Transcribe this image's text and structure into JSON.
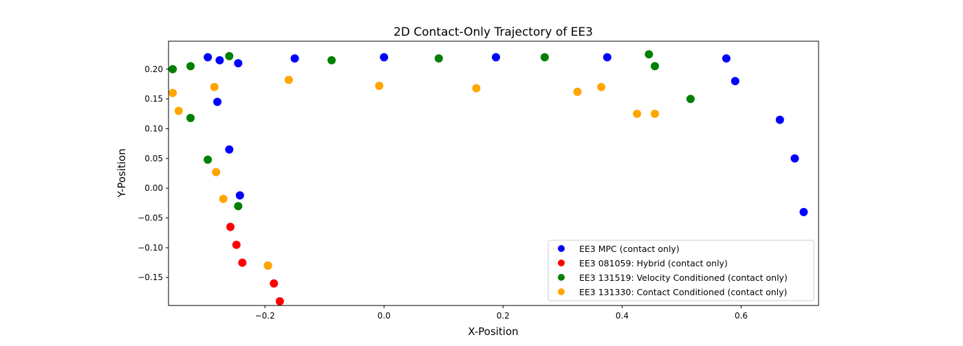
{
  "chart_data": {
    "type": "scatter",
    "title": "2D Contact-Only Trajectory of EE3",
    "xlabel": "X-Position",
    "ylabel": "Y-Position",
    "xlim": [
      -0.362,
      0.73
    ],
    "ylim": [
      -0.197,
      0.247
    ],
    "xticks": [
      -0.2,
      0.0,
      0.2,
      0.4,
      0.6
    ],
    "xtick_labels": [
      "−0.2",
      "0.0",
      "0.2",
      "0.4",
      "0.6"
    ],
    "yticks": [
      -0.15,
      -0.1,
      -0.05,
      0.0,
      0.05,
      0.1,
      0.15,
      0.2
    ],
    "ytick_labels": [
      "−0.15",
      "−0.10",
      "−0.05",
      "0.00",
      "0.05",
      "0.10",
      "0.15",
      "0.20"
    ],
    "grid": false,
    "legend_position": "bottom-right",
    "series": [
      {
        "name": "EE3 MPC (contact only)",
        "color": "#0000ff",
        "clusters": [
          [
            -0.296,
            0.22
          ],
          [
            -0.276,
            0.215
          ],
          [
            -0.245,
            0.21
          ],
          [
            -0.28,
            0.145
          ],
          [
            -0.26,
            0.065
          ],
          [
            -0.242,
            -0.012
          ],
          [
            -0.15,
            0.218
          ],
          [
            0.0,
            0.22
          ],
          [
            0.188,
            0.22
          ],
          [
            0.375,
            0.22
          ],
          [
            0.575,
            0.218
          ],
          [
            0.59,
            0.18
          ],
          [
            0.665,
            0.115
          ],
          [
            0.69,
            0.05
          ],
          [
            0.705,
            -0.04
          ]
        ]
      },
      {
        "name": "EE3 081059: Hybrid (contact only)",
        "color": "#ff0000",
        "clusters": [
          [
            -0.258,
            -0.065
          ],
          [
            -0.248,
            -0.095
          ],
          [
            -0.238,
            -0.125
          ],
          [
            -0.195,
            -0.13
          ],
          [
            -0.185,
            -0.16
          ],
          [
            -0.175,
            -0.19
          ]
        ]
      },
      {
        "name": "EE3 131519: Velocity Conditioned (contact only)",
        "color": "#008000",
        "clusters": [
          [
            -0.355,
            0.2
          ],
          [
            -0.325,
            0.205
          ],
          [
            -0.325,
            0.118
          ],
          [
            -0.296,
            0.048
          ],
          [
            -0.245,
            -0.03
          ],
          [
            -0.26,
            0.222
          ],
          [
            -0.088,
            0.215
          ],
          [
            0.092,
            0.218
          ],
          [
            0.27,
            0.22
          ],
          [
            0.445,
            0.225
          ],
          [
            0.455,
            0.205
          ],
          [
            0.515,
            0.15
          ]
        ]
      },
      {
        "name": "EE3 131330: Contact Conditioned (contact only)",
        "color": "#ffa500",
        "clusters": [
          [
            -0.355,
            0.16
          ],
          [
            -0.345,
            0.13
          ],
          [
            -0.285,
            0.17
          ],
          [
            -0.282,
            0.027
          ],
          [
            -0.27,
            -0.018
          ],
          [
            -0.195,
            -0.13
          ],
          [
            -0.16,
            0.182
          ],
          [
            -0.008,
            0.172
          ],
          [
            0.155,
            0.168
          ],
          [
            0.325,
            0.162
          ],
          [
            0.365,
            0.17
          ],
          [
            0.425,
            0.125
          ],
          [
            0.455,
            0.125
          ]
        ]
      }
    ]
  }
}
